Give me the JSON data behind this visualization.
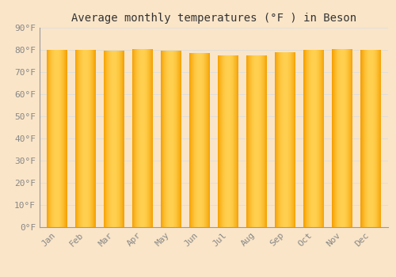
{
  "title": "Average monthly temperatures (°F ) in Beson",
  "months": [
    "Jan",
    "Feb",
    "Mar",
    "Apr",
    "May",
    "Jun",
    "Jul",
    "Aug",
    "Sep",
    "Oct",
    "Nov",
    "Dec"
  ],
  "values": [
    80.0,
    80.0,
    79.5,
    80.5,
    79.5,
    78.5,
    77.5,
    77.5,
    79.0,
    80.0,
    80.5,
    80.0
  ],
  "bar_color_outer": "#F5A000",
  "bar_color_inner": "#FFD050",
  "background_color": "#FAE5C8",
  "grid_color": "#DDDDDD",
  "ylim": [
    0,
    90
  ],
  "yticks": [
    0,
    10,
    20,
    30,
    40,
    50,
    60,
    70,
    80,
    90
  ],
  "title_fontsize": 10,
  "tick_fontsize": 8,
  "bar_width": 0.72
}
